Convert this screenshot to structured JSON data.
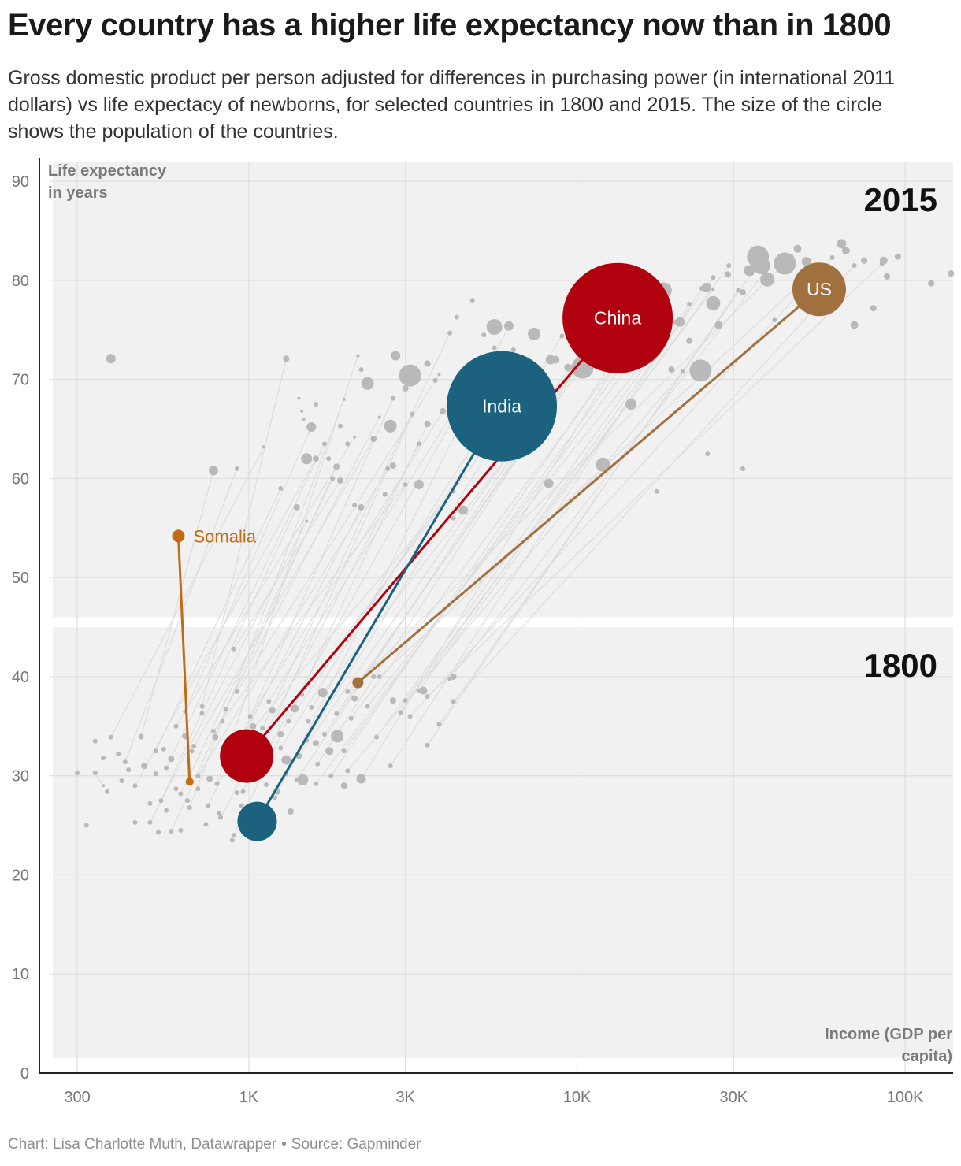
{
  "header": {
    "title": "Every country has a higher life expectancy now than in 1800",
    "subtitle": "Gross domestic product per person adjusted for differences in purchasing power (in international 2011 dollars) vs life expectacy of newborns, for selected countries in 1800 and 2015. The size of the circle shows the population of the countries."
  },
  "footer": {
    "credit": "Chart: Lisa Charlotte Muth, Datawrapper",
    "separator": "•",
    "source": "Source: Gapminder"
  },
  "chart_data": {
    "type": "scatter",
    "title": "Every country has a higher life expectancy now than in 1800",
    "xlabel": "Income (GDP per capita)",
    "ylabel": "Life expectancy in years",
    "xscale": "log",
    "xlim": [
      230,
      140000
    ],
    "ylim": [
      0,
      92
    ],
    "xticks": [
      {
        "value": 300,
        "label": "300"
      },
      {
        "value": 1000,
        "label": "1K"
      },
      {
        "value": 3000,
        "label": "3K"
      },
      {
        "value": 10000,
        "label": "10K"
      },
      {
        "value": 30000,
        "label": "30K"
      },
      {
        "value": 100000,
        "label": "100K"
      }
    ],
    "yticks": [
      0,
      10,
      20,
      30,
      40,
      50,
      60,
      70,
      80,
      90
    ],
    "grid": true,
    "panels": [
      {
        "label": "2015",
        "y_from": 46,
        "y_to": 92
      },
      {
        "label": "1800",
        "y_from": 1.5,
        "y_to": 45
      }
    ],
    "colors": {
      "china": "#b1000e",
      "india": "#1c627e",
      "us": "#a0703f",
      "somalia": "#c46a12",
      "other": "#b9b9b9",
      "link": "#dcdcdc",
      "panel": "#f1f1f1",
      "grid": "#dedede"
    },
    "highlighted": [
      {
        "name": "China",
        "label": "China",
        "color_key": "china",
        "gdp_1800": 985,
        "life_1800": 32.0,
        "gdp_2015": 13300,
        "life_2015": 76.2,
        "r_1800": 34,
        "r_2015": 70
      },
      {
        "name": "India",
        "label": "India",
        "color_key": "india",
        "gdp_1800": 1060,
        "life_1800": 25.4,
        "gdp_2015": 5900,
        "life_2015": 67.3,
        "r_1800": 25,
        "r_2015": 70
      },
      {
        "name": "US",
        "label": "US",
        "color_key": "us",
        "gdp_1800": 2150,
        "life_1800": 39.4,
        "gdp_2015": 54700,
        "life_2015": 79.1,
        "r_1800": 7,
        "r_2015": 34
      },
      {
        "name": "Somalia",
        "label": "Somalia",
        "color_key": "somalia",
        "gdp_1800": 660,
        "life_1800": 29.4,
        "gdp_2015": 610,
        "life_2015": 54.2,
        "r_1800": 5,
        "r_2015": 8
      }
    ],
    "other_countries": [
      [
        340,
        30.3,
        360,
        29.0,
        2
      ],
      [
        380,
        33.9,
        1110,
        63.2,
        2
      ],
      [
        420,
        31.4,
        920,
        61.0,
        3
      ],
      [
        450,
        29.0,
        1600,
        62.0,
        4
      ],
      [
        470,
        34.0,
        780,
        60.8,
        6
      ],
      [
        500,
        25.3,
        1500,
        55.7,
        2
      ],
      [
        520,
        32.5,
        1250,
        59.0,
        3
      ],
      [
        540,
        27.5,
        1400,
        57.1,
        4
      ],
      [
        560,
        30.8,
        1700,
        63.5,
        3
      ],
      [
        580,
        24.4,
        1850,
        61.2,
        4
      ],
      [
        600,
        35.0,
        2100,
        64.2,
        2
      ],
      [
        620,
        28.2,
        1800,
        60.0,
        3
      ],
      [
        640,
        36.5,
        1550,
        65.2,
        6
      ],
      [
        660,
        26.8,
        1950,
        68.0,
        2
      ],
      [
        680,
        33.0,
        2400,
        64.0,
        4
      ],
      [
        700,
        30.0,
        2650,
        61.0,
        3
      ],
      [
        720,
        37.0,
        1300,
        72.1,
        4
      ],
      [
        750,
        27.0,
        2200,
        57.1,
        4
      ],
      [
        780,
        34.5,
        3000,
        59.4,
        3
      ],
      [
        800,
        29.2,
        2150,
        72.4,
        2
      ],
      [
        820,
        25.8,
        3300,
        63.5,
        3
      ],
      [
        850,
        36.7,
        2500,
        66.2,
        2
      ],
      [
        880,
        31.5,
        2750,
        68.1,
        3
      ],
      [
        900,
        24.0,
        3500,
        65.5,
        4
      ],
      [
        920,
        38.5,
        3800,
        70.5,
        2
      ],
      [
        940,
        33.2,
        4200,
        58.7,
        3
      ],
      [
        960,
        28.4,
        3150,
        66.5,
        3
      ],
      [
        1010,
        36.0,
        4500,
        70.0,
        3
      ],
      [
        1050,
        30.5,
        5200,
        71.5,
        3
      ],
      [
        1100,
        34.8,
        4100,
        74.7,
        3
      ],
      [
        1150,
        37.5,
        5600,
        73.2,
        3
      ],
      [
        1200,
        27.8,
        6200,
        75.4,
        6
      ],
      [
        1250,
        32.8,
        7000,
        71.8,
        3
      ],
      [
        1320,
        35.5,
        6800,
        69.3,
        3
      ],
      [
        1400,
        29.6,
        7900,
        67.0,
        3
      ],
      [
        1450,
        38.2,
        8300,
        72.0,
        6
      ],
      [
        1500,
        33.6,
        9000,
        74.4,
        3
      ],
      [
        1550,
        36.9,
        9800,
        70.8,
        3
      ],
      [
        1620,
        31.2,
        10600,
        72.5,
        4
      ],
      [
        1700,
        34.2,
        11500,
        74.0,
        3
      ],
      [
        1780,
        30.0,
        12400,
        71.0,
        3
      ],
      [
        1850,
        36.3,
        14000,
        77.5,
        3
      ],
      [
        1950,
        32.5,
        15000,
        73.2,
        3
      ],
      [
        2050,
        35.8,
        16500,
        76.0,
        3
      ],
      [
        2200,
        29.7,
        18000,
        78.9,
        4
      ],
      [
        2300,
        37.0,
        20000,
        75.8,
        3
      ],
      [
        2450,
        33.9,
        22000,
        77.6,
        3
      ],
      [
        2700,
        31.0,
        24000,
        79.2,
        3
      ],
      [
        2900,
        36.4,
        26000,
        80.3,
        3
      ],
      [
        3300,
        38.6,
        29000,
        81.5,
        3
      ],
      [
        3500,
        33.1,
        31000,
        79.0,
        3
      ],
      [
        3800,
        35.2,
        34000,
        80.7,
        3
      ],
      [
        4100,
        39.8,
        38000,
        81.2,
        3
      ],
      [
        2000,
        38.5,
        45000,
        82.4,
        3
      ],
      [
        2500,
        40.0,
        52000,
        80.8,
        3
      ],
      [
        3100,
        36.0,
        60000,
        82.3,
        3
      ],
      [
        4200,
        37.5,
        70000,
        81.5,
        3
      ],
      [
        3500,
        38.0,
        85000,
        81.7,
        3
      ],
      [
        900,
        42.8,
        1900,
        59.8,
        4
      ],
      [
        1300,
        30.2,
        12000,
        76.0,
        4
      ],
      [
        1600,
        29.2,
        17000,
        74.6,
        2
      ],
      [
        2000,
        30.5,
        21000,
        70.8,
        3
      ],
      [
        3000,
        37.6,
        26000,
        79.1,
        2
      ]
    ],
    "unlinked_2015": [
      [
        380,
        72.1,
        6
      ],
      [
        1420,
        68.1,
        2
      ],
      [
        1450,
        66.8,
        2
      ],
      [
        1470,
        66.0,
        2
      ],
      [
        1500,
        62.0,
        7
      ],
      [
        1600,
        67.5,
        3
      ],
      [
        1750,
        62.0,
        3
      ],
      [
        1900,
        65.3,
        3
      ],
      [
        2000,
        63.5,
        3
      ],
      [
        2100,
        57.3,
        3
      ],
      [
        2150,
        72.4,
        2
      ],
      [
        2200,
        71.0,
        3
      ],
      [
        2300,
        69.6,
        8
      ],
      [
        2600,
        58.4,
        3
      ],
      [
        2700,
        65.3,
        8
      ],
      [
        2750,
        61.3,
        4
      ],
      [
        2800,
        72.4,
        6
      ],
      [
        3000,
        69.1,
        4
      ],
      [
        3100,
        70.4,
        14
      ],
      [
        3300,
        59.4,
        6
      ],
      [
        3500,
        71.6,
        4
      ],
      [
        3700,
        69.9,
        3
      ],
      [
        3900,
        66.8,
        4
      ],
      [
        4200,
        68.3,
        5
      ],
      [
        4300,
        76.3,
        3
      ],
      [
        4500,
        56.8,
        6
      ],
      [
        4800,
        78.0,
        3
      ],
      [
        5200,
        74.5,
        3
      ],
      [
        5600,
        75.3,
        10
      ],
      [
        5800,
        70.0,
        3
      ],
      [
        6400,
        73.0,
        3
      ],
      [
        7000,
        70.8,
        4
      ],
      [
        7400,
        74.6,
        8
      ],
      [
        7600,
        66.5,
        4
      ],
      [
        8200,
        59.5,
        6
      ],
      [
        8600,
        72.0,
        5
      ],
      [
        9400,
        71.2,
        5
      ],
      [
        10400,
        71.2,
        14
      ],
      [
        11200,
        76.0,
        4
      ],
      [
        12000,
        61.4,
        9
      ],
      [
        13600,
        74.2,
        5
      ],
      [
        14600,
        67.5,
        7
      ],
      [
        16000,
        77.5,
        5
      ],
      [
        17000,
        74.8,
        6
      ],
      [
        18400,
        79.0,
        10
      ],
      [
        19400,
        71.0,
        4
      ],
      [
        20600,
        75.8,
        6
      ],
      [
        22000,
        73.9,
        4
      ],
      [
        23800,
        70.9,
        14
      ],
      [
        24800,
        79.3,
        6
      ],
      [
        26000,
        77.7,
        9
      ],
      [
        27000,
        75.5,
        5
      ],
      [
        28800,
        80.6,
        4
      ],
      [
        32000,
        78.8,
        4
      ],
      [
        33500,
        81.0,
        7
      ],
      [
        35600,
        82.4,
        14
      ],
      [
        36500,
        81.5,
        11
      ],
      [
        38000,
        80.1,
        9
      ],
      [
        40000,
        76.0,
        3
      ],
      [
        43000,
        81.7,
        14
      ],
      [
        47000,
        83.2,
        5
      ],
      [
        50000,
        81.9,
        6
      ],
      [
        54000,
        80.3,
        5
      ],
      [
        59000,
        81.2,
        4
      ],
      [
        64000,
        83.7,
        6
      ],
      [
        66000,
        83.0,
        5
      ],
      [
        70000,
        75.5,
        5
      ],
      [
        75000,
        82.0,
        4
      ],
      [
        80000,
        77.2,
        4
      ],
      [
        86000,
        82.0,
        5
      ],
      [
        88000,
        80.4,
        4
      ],
      [
        95000,
        82.4,
        4
      ],
      [
        120000,
        79.7,
        4
      ],
      [
        138000,
        80.7,
        4
      ],
      [
        25000,
        62.5,
        3
      ],
      [
        17500,
        58.7,
        3
      ],
      [
        32000,
        61.0,
        3
      ],
      [
        4200,
        56.0,
        3
      ]
    ],
    "unlinked_1800": [
      [
        300,
        30.3,
        3
      ],
      [
        320,
        25.0,
        3
      ],
      [
        340,
        33.5,
        3
      ],
      [
        360,
        31.8,
        3
      ],
      [
        370,
        28.4,
        3
      ],
      [
        400,
        32.2,
        3
      ],
      [
        410,
        29.5,
        3
      ],
      [
        430,
        30.6,
        3
      ],
      [
        450,
        25.3,
        3
      ],
      [
        470,
        33.9,
        3
      ],
      [
        480,
        31.0,
        4
      ],
      [
        500,
        27.2,
        3
      ],
      [
        520,
        30.2,
        3
      ],
      [
        530,
        24.3,
        3
      ],
      [
        550,
        32.7,
        3
      ],
      [
        560,
        26.5,
        3
      ],
      [
        580,
        31.7,
        4
      ],
      [
        600,
        28.7,
        3
      ],
      [
        620,
        24.5,
        3
      ],
      [
        640,
        34.0,
        4
      ],
      [
        650,
        27.5,
        3
      ],
      [
        670,
        32.5,
        3
      ],
      [
        700,
        28.7,
        3
      ],
      [
        720,
        36.3,
        3
      ],
      [
        740,
        25.1,
        3
      ],
      [
        760,
        29.7,
        4
      ],
      [
        790,
        33.9,
        4
      ],
      [
        810,
        26.2,
        3
      ],
      [
        830,
        35.5,
        3
      ],
      [
        870,
        30.6,
        4
      ],
      [
        890,
        23.5,
        3
      ],
      [
        920,
        28.3,
        3
      ],
      [
        950,
        27.0,
        3
      ],
      [
        980,
        26.0,
        5
      ],
      [
        1030,
        35.0,
        4
      ],
      [
        1080,
        33.0,
        4
      ],
      [
        1130,
        29.1,
        3
      ],
      [
        1180,
        36.6,
        4
      ],
      [
        1220,
        28.4,
        4
      ],
      [
        1250,
        34.2,
        4
      ],
      [
        1300,
        31.6,
        6
      ],
      [
        1340,
        26.4,
        4
      ],
      [
        1380,
        36.8,
        5
      ],
      [
        1420,
        32.0,
        4
      ],
      [
        1460,
        29.6,
        7
      ],
      [
        1520,
        35.5,
        3
      ],
      [
        1600,
        33.3,
        4
      ],
      [
        1680,
        38.4,
        6
      ],
      [
        1760,
        32.5,
        5
      ],
      [
        1860,
        34.0,
        8
      ],
      [
        1950,
        29.0,
        4
      ],
      [
        2100,
        37.8,
        4
      ],
      [
        2200,
        29.7,
        6
      ],
      [
        2400,
        40.0,
        3
      ],
      [
        2750,
        37.6,
        4
      ],
      [
        3400,
        38.6,
        5
      ],
      [
        4200,
        40.0,
        4
      ],
      [
        1100,
        24.5,
        3
      ],
      [
        1130,
        25.5,
        3
      ]
    ]
  }
}
